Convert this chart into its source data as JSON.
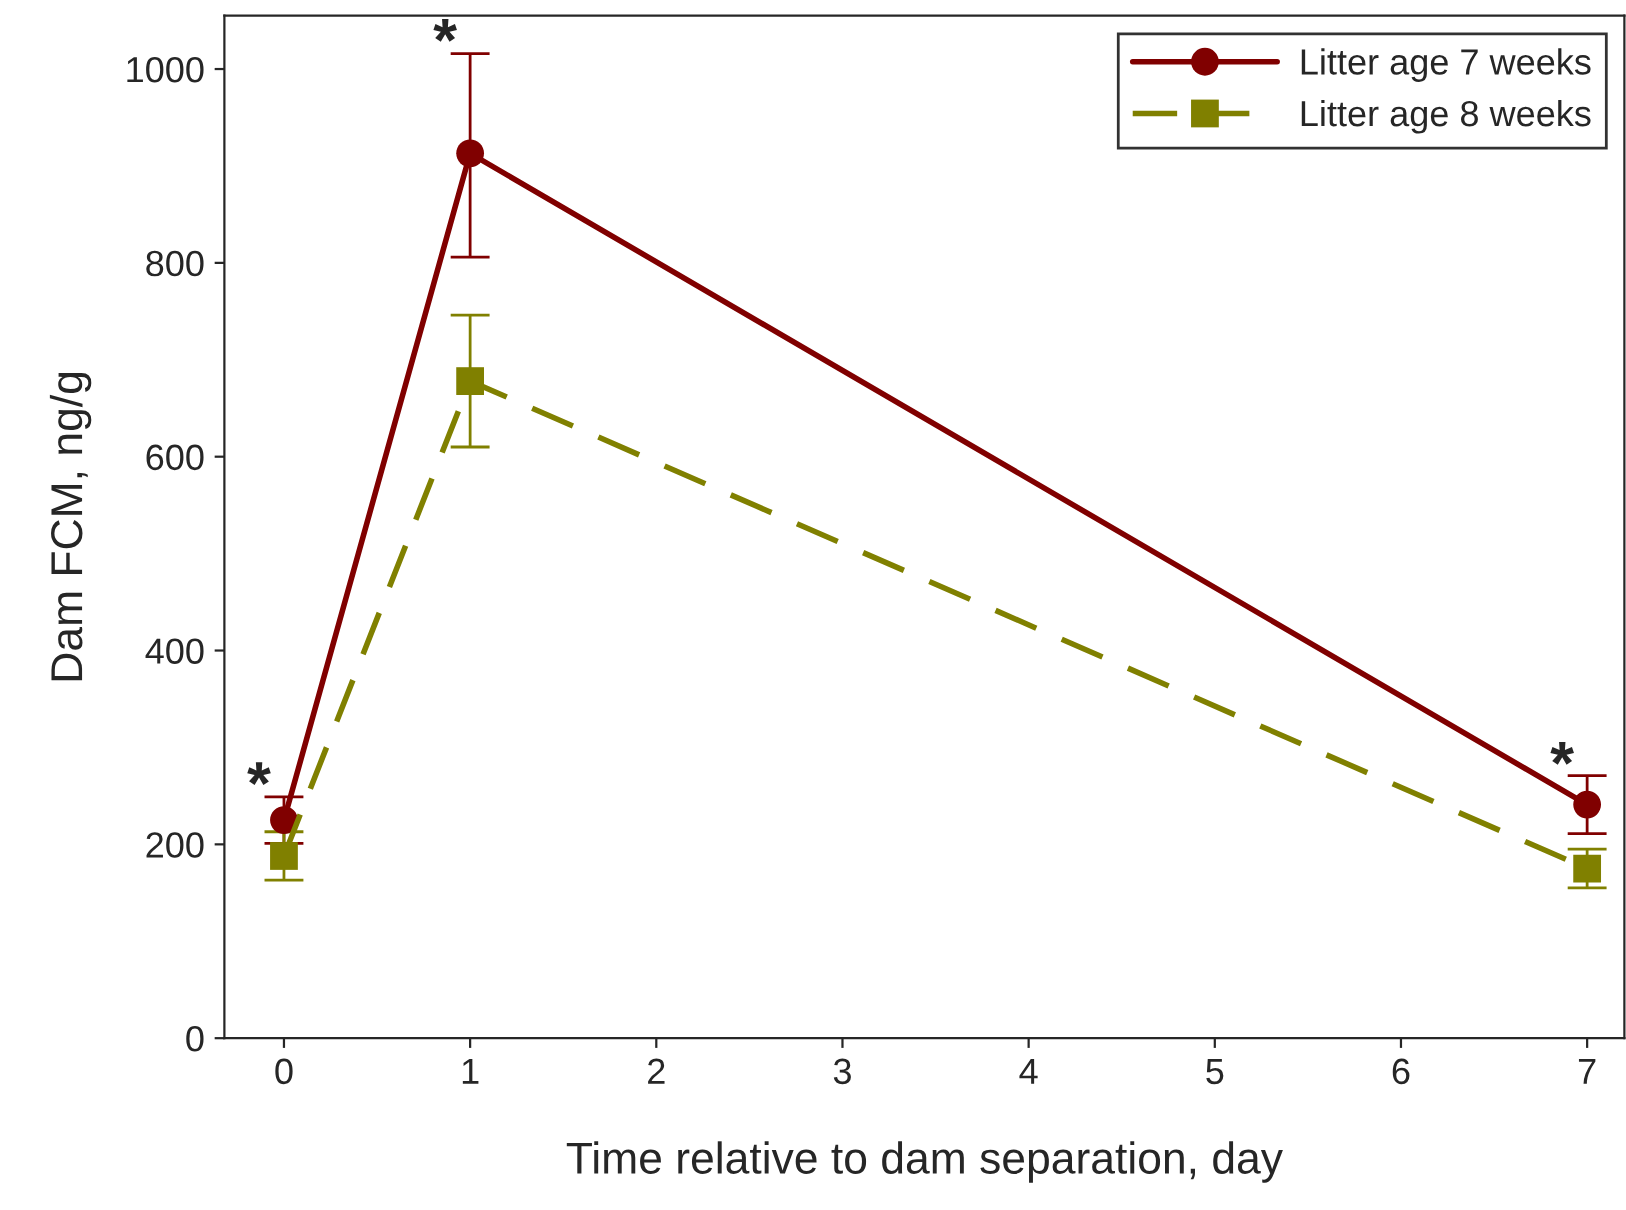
{
  "chart_data": {
    "type": "line",
    "xlabel": "Time relative to dam separation, day",
    "ylabel": "Dam FCM, ng/g",
    "x": [
      0,
      1,
      7
    ],
    "series": [
      {
        "name": "Litter age 7 weeks",
        "color": "#800000",
        "values": [
          225,
          913,
          241
        ],
        "errors": [
          24,
          [
            806,
            1016
          ],
          30
        ],
        "marker": "circle",
        "line_style": "solid"
      },
      {
        "name": "Litter age 8 weeks",
        "color": "#808000",
        "values": [
          188,
          678,
          175
        ],
        "errors": [
          25,
          [
            610,
            746
          ],
          20
        ],
        "marker": "square",
        "line_style": "dashed"
      }
    ],
    "xlim": [
      -0.32,
      7.2
    ],
    "ylim": [
      0,
      1055
    ],
    "xticks": [
      0,
      1,
      2,
      3,
      4,
      5,
      6,
      7
    ],
    "yticks": [
      0,
      200,
      400,
      600,
      800,
      1000
    ],
    "annotations": [
      {
        "text": "*",
        "x": 0,
        "y": 249
      },
      {
        "text": "*",
        "x": 1,
        "y": 1016
      },
      {
        "text": "*",
        "x": 7,
        "y": 270
      }
    ],
    "legend": "top right",
    "grid": false
  }
}
